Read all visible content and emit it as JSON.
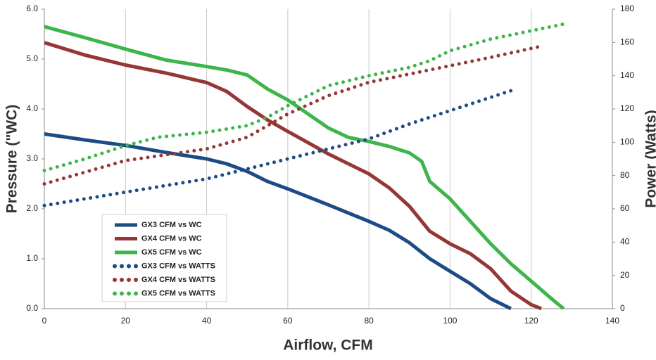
{
  "chart_data": {
    "type": "line",
    "xlabel": "Airflow, CFM",
    "ylabel": "Pressure (\"WC)",
    "y2label": "Power (Watts)",
    "xlim": [
      0,
      140
    ],
    "xticks": [
      0,
      20,
      40,
      60,
      80,
      100,
      120,
      140
    ],
    "ylim": [
      0,
      6
    ],
    "yticks": [
      {
        "value": 0,
        "label": "0.0"
      },
      {
        "value": 1,
        "label": "1.0"
      },
      {
        "value": 2,
        "label": "2.0"
      },
      {
        "value": 3,
        "label": "3.0"
      },
      {
        "value": 4,
        "label": "4.0"
      },
      {
        "value": 5,
        "label": "5.0"
      },
      {
        "value": 6,
        "label": "6.0"
      }
    ],
    "y2lim": [
      0,
      180
    ],
    "y2ticks": [
      0,
      20,
      40,
      60,
      80,
      100,
      120,
      140,
      160,
      180
    ],
    "grid": "x",
    "legend": "lower left",
    "series": [
      {
        "name": "GX3 CFM vs WC",
        "color": "#1d4b85",
        "style": "solid",
        "x": [
          0,
          10,
          20,
          30,
          40,
          45,
          50,
          55,
          60,
          70,
          80,
          85,
          90,
          95,
          100,
          105,
          110,
          115
        ],
        "values": [
          3.5,
          3.38,
          3.27,
          3.13,
          3.0,
          2.9,
          2.75,
          2.55,
          2.4,
          2.08,
          1.75,
          1.57,
          1.32,
          1.0,
          0.75,
          0.5,
          0.2,
          0.0
        ]
      },
      {
        "name": "GX4 CFM vs WC",
        "color": "#953735",
        "style": "solid",
        "x": [
          0,
          10,
          20,
          30,
          40,
          45,
          50,
          55,
          60,
          70,
          80,
          85,
          90,
          95,
          100,
          105,
          110,
          115,
          120,
          122.5
        ],
        "values": [
          5.33,
          5.08,
          4.88,
          4.72,
          4.53,
          4.35,
          4.05,
          3.78,
          3.55,
          3.1,
          2.7,
          2.42,
          2.05,
          1.55,
          1.3,
          1.1,
          0.8,
          0.35,
          0.08,
          0.0
        ]
      },
      {
        "name": "GX5 CFM vs WC",
        "color": "#3cb54a",
        "style": "solid",
        "x": [
          0,
          10,
          20,
          30,
          40,
          45,
          50,
          55,
          60,
          65,
          70,
          75,
          80,
          85,
          90,
          93,
          95,
          100,
          105,
          110,
          115,
          120,
          125,
          128
        ],
        "values": [
          5.65,
          5.43,
          5.2,
          4.98,
          4.85,
          4.78,
          4.68,
          4.4,
          4.18,
          3.9,
          3.62,
          3.43,
          3.35,
          3.25,
          3.12,
          2.95,
          2.55,
          2.2,
          1.75,
          1.3,
          0.9,
          0.55,
          0.2,
          0.0
        ]
      },
      {
        "name": "GX3 CFM vs WATTS",
        "color": "#1d4b85",
        "style": "dotted",
        "axis": "y2",
        "x": [
          0,
          20,
          40,
          60,
          80,
          90,
          100,
          115
        ],
        "values": [
          62,
          70,
          78,
          90,
          102,
          111,
          119,
          131
        ]
      },
      {
        "name": "GX4 CFM vs WATTS",
        "color": "#953735",
        "style": "dotted",
        "axis": "y2",
        "x": [
          0,
          20,
          40,
          50,
          60,
          70,
          80,
          90,
          100,
          110,
          123
        ],
        "values": [
          75,
          89,
          96,
          103,
          117,
          128,
          136,
          141,
          146,
          151,
          158
        ]
      },
      {
        "name": "GX5 CFM vs WATTS",
        "color": "#3cb54a",
        "style": "dotted",
        "axis": "y2",
        "x": [
          0,
          10,
          20,
          28,
          40,
          50,
          55,
          60,
          65,
          70,
          80,
          90,
          95,
          100,
          110,
          120,
          128
        ],
        "values": [
          83,
          90,
          98,
          103,
          106,
          110,
          115,
          122,
          128,
          134,
          140,
          145,
          149,
          155,
          162,
          167,
          171
        ]
      }
    ]
  }
}
